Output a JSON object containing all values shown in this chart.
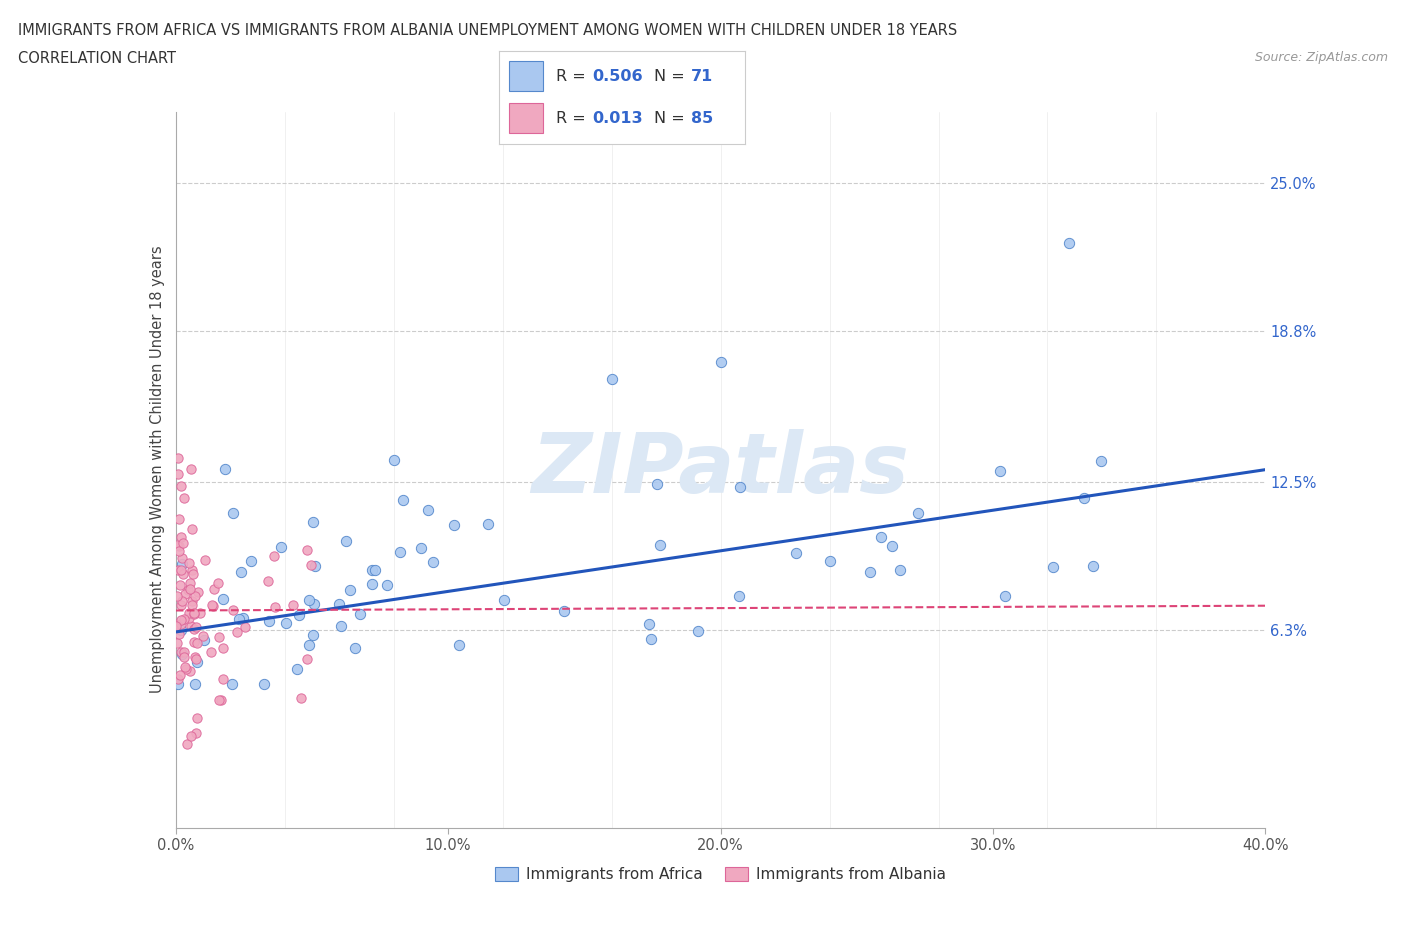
{
  "title_line1": "IMMIGRANTS FROM AFRICA VS IMMIGRANTS FROM ALBANIA UNEMPLOYMENT AMONG WOMEN WITH CHILDREN UNDER 18 YEARS",
  "title_line2": "CORRELATION CHART",
  "source_text": "Source: ZipAtlas.com",
  "ylabel": "Unemployment Among Women with Children Under 18 years",
  "xlabel_africa": "Immigrants from Africa",
  "xlabel_albania": "Immigrants from Albania",
  "xlim": [
    0.0,
    0.4
  ],
  "ylim": [
    -0.02,
    0.28
  ],
  "yticks": [
    0.063,
    0.125,
    0.188,
    0.25
  ],
  "ytick_labels": [
    "6.3%",
    "12.5%",
    "18.8%",
    "25.0%"
  ],
  "xticks": [
    0.0,
    0.1,
    0.2,
    0.3,
    0.4
  ],
  "xtick_labels": [
    "0.0%",
    "10.0%",
    "20.0%",
    "30.0%",
    "40.0%"
  ],
  "africa_color": "#aac8f0",
  "albania_color": "#f0a8c0",
  "africa_edge_color": "#5588cc",
  "albania_edge_color": "#dd6699",
  "trend_africa_color": "#2255bb",
  "trend_albania_color": "#dd4477",
  "africa_R": 0.506,
  "africa_N": 71,
  "albania_R": 0.013,
  "albania_N": 85,
  "legend_R_color": "#3366cc",
  "background_color": "#ffffff",
  "grid_color": "#cccccc",
  "watermark_color": "#dce8f5",
  "trend_africa_y0": 0.062,
  "trend_africa_y1": 0.13,
  "trend_albania_y0": 0.071,
  "trend_albania_y1": 0.073
}
